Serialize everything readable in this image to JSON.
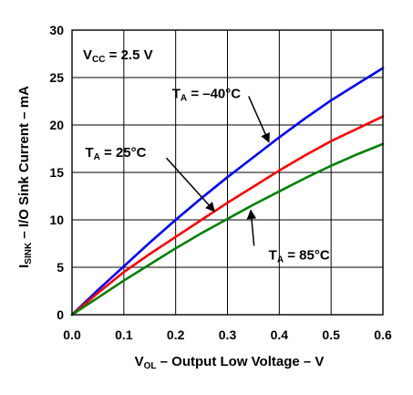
{
  "chart_data": {
    "type": "line",
    "xlabel": "V_OL – Output Low Voltage – V",
    "ylabel": "I_SINK – I/O Sink Current – mA",
    "xlabel_parts": {
      "main": "V",
      "sub": "OL",
      "rest": " – Output Low Voltage – V"
    },
    "ylabel_parts": {
      "main": "I",
      "sub": "SINK",
      "rest": " – I/O Sink Current – mA"
    },
    "xlim": [
      0.0,
      0.6
    ],
    "ylim": [
      0,
      30
    ],
    "x_ticks": [
      0.0,
      0.1,
      0.2,
      0.3,
      0.4,
      0.5,
      0.6
    ],
    "x_tick_labels": [
      "0.0",
      "0.1",
      "0.2",
      "0.3",
      "0.4",
      "0.5",
      "0.6"
    ],
    "y_ticks": [
      0,
      5,
      10,
      15,
      20,
      25,
      30
    ],
    "y_tick_labels": [
      "0",
      "5",
      "10",
      "15",
      "20",
      "25",
      "30"
    ],
    "grid": true,
    "condition_label": {
      "main": "V",
      "sub": "CC",
      "rest": " = 2.5 V"
    },
    "series": [
      {
        "name": "T_A = –40°C",
        "color": "#0000ff",
        "x": [
          0.0,
          0.05,
          0.1,
          0.15,
          0.2,
          0.25,
          0.3,
          0.35,
          0.4,
          0.45,
          0.5,
          0.55,
          0.6
        ],
        "y": [
          0.0,
          2.6,
          5.1,
          7.6,
          10.0,
          12.3,
          14.5,
          16.6,
          18.7,
          20.7,
          22.6,
          24.3,
          26.0
        ]
      },
      {
        "name": "T_A = 25°C",
        "color": "#ff0000",
        "x": [
          0.0,
          0.05,
          0.1,
          0.15,
          0.2,
          0.25,
          0.3,
          0.35,
          0.4,
          0.45,
          0.5,
          0.55,
          0.6
        ],
        "y": [
          0.0,
          2.3,
          4.5,
          6.4,
          8.2,
          10.0,
          11.8,
          13.5,
          15.2,
          16.8,
          18.3,
          19.6,
          20.9
        ]
      },
      {
        "name": "T_A = 85°C",
        "color": "#008000",
        "x": [
          0.0,
          0.05,
          0.1,
          0.15,
          0.2,
          0.25,
          0.3,
          0.35,
          0.4,
          0.45,
          0.5,
          0.55,
          0.6
        ],
        "y": [
          0.0,
          1.8,
          3.6,
          5.3,
          7.0,
          8.6,
          10.1,
          11.6,
          13.0,
          14.4,
          15.7,
          16.9,
          18.0
        ]
      }
    ],
    "annotations": [
      {
        "main": "T",
        "sub": "A",
        "rest": " = –40°C",
        "series": 0,
        "arrow_target": [
          0.38,
          18.2
        ],
        "text_anchor_value": [
          0.355,
          23.5
        ]
      },
      {
        "main": "T",
        "sub": "A",
        "rest": " = 25°C",
        "series": 1,
        "arrow_target": [
          0.275,
          10.9
        ],
        "text_anchor_value": [
          0.175,
          17.3
        ]
      },
      {
        "main": "T",
        "sub": "A",
        "rest": " = 85°C",
        "series": 2,
        "arrow_target": [
          0.345,
          11.0
        ],
        "text_anchor_value": [
          0.39,
          6.5
        ]
      }
    ]
  }
}
